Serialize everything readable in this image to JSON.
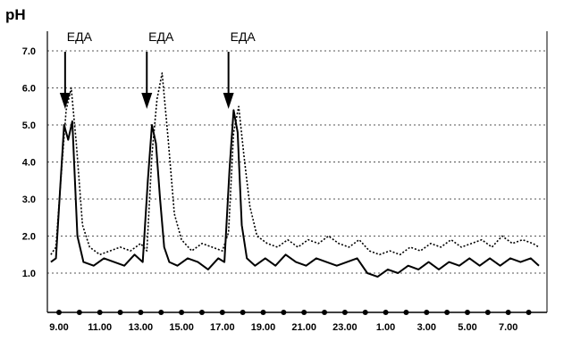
{
  "chart_data": {
    "type": "line",
    "ylabel": "pH",
    "xlabel": "",
    "ylim": [
      0.0,
      7.3
    ],
    "y_ticks": [
      "1.0",
      "2.0",
      "3.0",
      "4.0",
      "5.0",
      "6.0",
      "7.0"
    ],
    "x_ticks": [
      "9.00",
      "11.00",
      "13.00",
      "15.00",
      "17.00",
      "19.00",
      "21.00",
      "23.00",
      "1.00",
      "3.00",
      "5.00",
      "7.00"
    ],
    "grid": "horizontal dotted",
    "annotations": [
      {
        "text": "ЕДА",
        "x_hours": 9.3
      },
      {
        "text": "ЕДА",
        "x_hours": 13.3
      },
      {
        "text": "ЕДА",
        "x_hours": 17.3
      }
    ],
    "series": [
      {
        "style": "solid",
        "x_hours": [
          8.6,
          8.85,
          9.05,
          9.25,
          9.45,
          9.65,
          9.9,
          10.2,
          10.7,
          11.2,
          11.7,
          12.2,
          12.7,
          13.1,
          13.35,
          13.55,
          13.75,
          13.95,
          14.15,
          14.4,
          14.8,
          15.3,
          15.8,
          16.3,
          16.8,
          17.1,
          17.35,
          17.55,
          17.75,
          17.95,
          18.2,
          18.6,
          19.1,
          19.6,
          20.1,
          20.6,
          21.1,
          21.6,
          22.1,
          22.6,
          23.1,
          23.6,
          24.1,
          24.6,
          25.1,
          25.6,
          26.1,
          26.6,
          27.1,
          27.6,
          28.1,
          28.6,
          29.1,
          29.6,
          30.1,
          30.6,
          31.1,
          31.6,
          32.1,
          32.5
        ],
        "values": [
          1.3,
          1.4,
          3.2,
          5.0,
          4.6,
          5.1,
          2.0,
          1.3,
          1.2,
          1.4,
          1.3,
          1.2,
          1.5,
          1.3,
          3.5,
          5.0,
          4.5,
          3.0,
          1.7,
          1.3,
          1.2,
          1.4,
          1.3,
          1.1,
          1.4,
          1.3,
          3.8,
          5.4,
          4.8,
          2.3,
          1.4,
          1.2,
          1.4,
          1.2,
          1.5,
          1.3,
          1.2,
          1.4,
          1.3,
          1.2,
          1.3,
          1.4,
          1.0,
          0.9,
          1.1,
          1.0,
          1.2,
          1.1,
          1.3,
          1.1,
          1.3,
          1.2,
          1.4,
          1.2,
          1.4,
          1.2,
          1.4,
          1.3,
          1.4,
          1.2
        ]
      },
      {
        "style": "dotted",
        "x_hours": [
          8.6,
          8.85,
          9.1,
          9.35,
          9.6,
          9.85,
          10.15,
          10.5,
          11.0,
          11.5,
          12.0,
          12.5,
          13.0,
          13.3,
          13.55,
          13.8,
          14.05,
          14.35,
          14.65,
          15.0,
          15.5,
          16.0,
          16.5,
          17.0,
          17.3,
          17.55,
          17.8,
          18.05,
          18.35,
          18.7,
          19.2,
          19.7,
          20.2,
          20.7,
          21.2,
          21.7,
          22.2,
          22.7,
          23.2,
          23.7,
          24.2,
          24.7,
          25.2,
          25.7,
          26.2,
          26.7,
          27.2,
          27.7,
          28.2,
          28.7,
          29.2,
          29.7,
          30.2,
          30.7,
          31.2,
          31.7,
          32.2,
          32.5
        ],
        "values": [
          1.5,
          1.7,
          3.6,
          5.4,
          6.0,
          4.5,
          2.3,
          1.7,
          1.5,
          1.6,
          1.7,
          1.6,
          1.8,
          1.6,
          4.2,
          5.7,
          6.4,
          4.6,
          2.6,
          1.9,
          1.6,
          1.8,
          1.7,
          1.6,
          2.1,
          4.8,
          5.5,
          4.2,
          2.8,
          2.0,
          1.8,
          1.7,
          1.9,
          1.7,
          1.9,
          1.8,
          2.0,
          1.8,
          1.7,
          1.9,
          1.6,
          1.5,
          1.6,
          1.5,
          1.7,
          1.6,
          1.8,
          1.7,
          1.9,
          1.7,
          1.8,
          1.9,
          1.7,
          2.0,
          1.8,
          1.9,
          1.8,
          1.7
        ]
      }
    ]
  }
}
